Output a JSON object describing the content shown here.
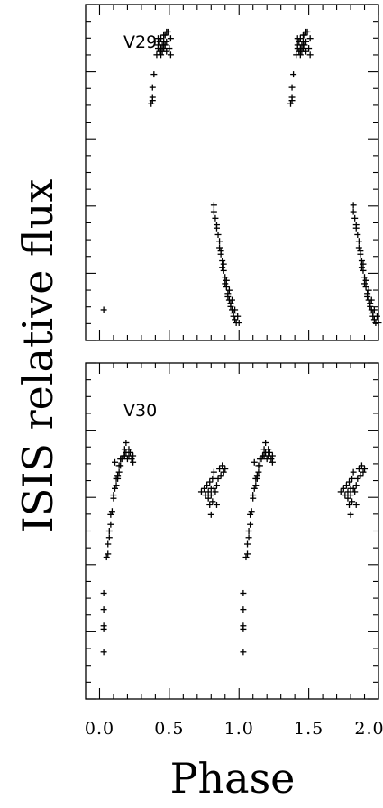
{
  "chart_data": [
    {
      "type": "scatter",
      "panel_label": "V29",
      "xlabel": "Phase",
      "ylabel": "ISIS relative flux",
      "xlim": [
        -0.1,
        2.0
      ],
      "ylim": [
        0,
        1
      ],
      "x_ticks": [
        "0.0",
        "0.5",
        "1.0",
        "1.5",
        "2.0"
      ],
      "y_tick_labels_shown": false,
      "marker": "+",
      "series": [
        {
          "points": [
            [
              0.03,
              0.08
            ],
            [
              0.37,
              0.71
            ],
            [
              0.38,
              0.72
            ],
            [
              0.38,
              0.73
            ],
            [
              0.38,
              0.76
            ],
            [
              0.39,
              0.8
            ],
            [
              0.41,
              0.86
            ],
            [
              0.42,
              0.88
            ],
            [
              0.42,
              0.89
            ],
            [
              0.43,
              0.87
            ],
            [
              0.43,
              0.9
            ],
            [
              0.44,
              0.88
            ],
            [
              0.44,
              0.91
            ],
            [
              0.45,
              0.87
            ],
            [
              0.45,
              0.89
            ],
            [
              0.46,
              0.9
            ],
            [
              0.46,
              0.88
            ],
            [
              0.47,
              0.92
            ],
            [
              0.47,
              0.89
            ],
            [
              0.48,
              0.87
            ],
            [
              0.48,
              0.9
            ],
            [
              0.49,
              0.93
            ],
            [
              0.5,
              0.88
            ],
            [
              0.51,
              0.91
            ],
            [
              0.51,
              0.86
            ],
            [
              0.42,
              0.91
            ],
            [
              0.44,
              0.86
            ],
            [
              0.46,
              0.92
            ],
            [
              0.48,
              0.93
            ],
            [
              0.82,
              0.4
            ],
            [
              0.82,
              0.38
            ],
            [
              0.83,
              0.36
            ],
            [
              0.84,
              0.34
            ],
            [
              0.85,
              0.31
            ],
            [
              0.86,
              0.29
            ],
            [
              0.86,
              0.27
            ],
            [
              0.87,
              0.25
            ],
            [
              0.88,
              0.23
            ],
            [
              0.88,
              0.21
            ],
            [
              0.89,
              0.2
            ],
            [
              0.9,
              0.18
            ],
            [
              0.9,
              0.16
            ],
            [
              0.91,
              0.15
            ],
            [
              0.92,
              0.13
            ],
            [
              0.92,
              0.12
            ],
            [
              0.93,
              0.11
            ],
            [
              0.94,
              0.1
            ],
            [
              0.94,
              0.09
            ],
            [
              0.95,
              0.08
            ],
            [
              0.96,
              0.07
            ],
            [
              0.96,
              0.06
            ],
            [
              0.97,
              0.05
            ],
            [
              0.98,
              0.04
            ],
            [
              0.84,
              0.33
            ],
            [
              0.87,
              0.26
            ],
            [
              0.89,
              0.22
            ],
            [
              0.91,
              0.17
            ],
            [
              0.93,
              0.14
            ],
            [
              0.95,
              0.11
            ],
            [
              0.97,
              0.08
            ],
            [
              0.99,
              0.06
            ],
            [
              1.0,
              0.04
            ],
            [
              1.37,
              0.71
            ],
            [
              1.38,
              0.72
            ],
            [
              1.38,
              0.73
            ],
            [
              1.38,
              0.76
            ],
            [
              1.39,
              0.8
            ],
            [
              1.41,
              0.86
            ],
            [
              1.42,
              0.88
            ],
            [
              1.42,
              0.89
            ],
            [
              1.43,
              0.87
            ],
            [
              1.43,
              0.9
            ],
            [
              1.44,
              0.88
            ],
            [
              1.44,
              0.91
            ],
            [
              1.45,
              0.87
            ],
            [
              1.45,
              0.89
            ],
            [
              1.46,
              0.9
            ],
            [
              1.46,
              0.88
            ],
            [
              1.47,
              0.92
            ],
            [
              1.47,
              0.89
            ],
            [
              1.48,
              0.87
            ],
            [
              1.48,
              0.9
            ],
            [
              1.49,
              0.93
            ],
            [
              1.5,
              0.88
            ],
            [
              1.51,
              0.91
            ],
            [
              1.51,
              0.86
            ],
            [
              1.42,
              0.91
            ],
            [
              1.44,
              0.86
            ],
            [
              1.46,
              0.92
            ],
            [
              1.48,
              0.93
            ],
            [
              1.82,
              0.4
            ],
            [
              1.82,
              0.38
            ],
            [
              1.83,
              0.36
            ],
            [
              1.84,
              0.34
            ],
            [
              1.85,
              0.31
            ],
            [
              1.86,
              0.29
            ],
            [
              1.86,
              0.27
            ],
            [
              1.87,
              0.25
            ],
            [
              1.88,
              0.23
            ],
            [
              1.88,
              0.21
            ],
            [
              1.89,
              0.2
            ],
            [
              1.9,
              0.18
            ],
            [
              1.9,
              0.16
            ],
            [
              1.91,
              0.15
            ],
            [
              1.92,
              0.13
            ],
            [
              1.92,
              0.12
            ],
            [
              1.93,
              0.11
            ],
            [
              1.94,
              0.1
            ],
            [
              1.94,
              0.09
            ],
            [
              1.95,
              0.08
            ],
            [
              1.96,
              0.07
            ],
            [
              1.96,
              0.06
            ],
            [
              1.97,
              0.05
            ],
            [
              1.98,
              0.04
            ],
            [
              1.84,
              0.33
            ],
            [
              1.87,
              0.26
            ],
            [
              1.89,
              0.22
            ],
            [
              1.91,
              0.17
            ],
            [
              1.93,
              0.14
            ],
            [
              1.95,
              0.11
            ],
            [
              1.97,
              0.08
            ],
            [
              1.99,
              0.06
            ],
            [
              2.0,
              0.04
            ]
          ]
        }
      ]
    },
    {
      "type": "scatter",
      "panel_label": "V30",
      "xlabel": "Phase",
      "ylabel": "ISIS relative flux",
      "xlim": [
        -0.1,
        2.0
      ],
      "ylim": [
        0,
        1
      ],
      "x_ticks": [
        "0.0",
        "0.5",
        "1.0",
        "1.5",
        "2.0"
      ],
      "y_tick_labels_shown": false,
      "marker": "+",
      "series": [
        {
          "points": [
            [
              0.03,
              0.13
            ],
            [
              0.03,
              0.2
            ],
            [
              0.03,
              0.21
            ],
            [
              0.03,
              0.26
            ],
            [
              0.03,
              0.31
            ],
            [
              0.05,
              0.42
            ],
            [
              0.06,
              0.43
            ],
            [
              0.06,
              0.46
            ],
            [
              0.07,
              0.48
            ],
            [
              0.07,
              0.5
            ],
            [
              0.08,
              0.52
            ],
            [
              0.08,
              0.55
            ],
            [
              0.09,
              0.56
            ],
            [
              0.1,
              0.6
            ],
            [
              0.1,
              0.61
            ],
            [
              0.11,
              0.63
            ],
            [
              0.12,
              0.64
            ],
            [
              0.12,
              0.66
            ],
            [
              0.13,
              0.66
            ],
            [
              0.14,
              0.68
            ],
            [
              0.14,
              0.7
            ],
            [
              0.15,
              0.72
            ],
            [
              0.16,
              0.72
            ],
            [
              0.17,
              0.73
            ],
            [
              0.18,
              0.73
            ],
            [
              0.18,
              0.75
            ],
            [
              0.19,
              0.74
            ],
            [
              0.2,
              0.72
            ],
            [
              0.21,
              0.73
            ],
            [
              0.22,
              0.74
            ],
            [
              0.23,
              0.72
            ],
            [
              0.24,
              0.71
            ],
            [
              0.24,
              0.73
            ],
            [
              0.19,
              0.77
            ],
            [
              0.21,
              0.75
            ],
            [
              0.11,
              0.71
            ],
            [
              0.13,
              0.67
            ],
            [
              0.15,
              0.7
            ],
            [
              0.73,
              0.62
            ],
            [
              0.75,
              0.63
            ],
            [
              0.76,
              0.61
            ],
            [
              0.77,
              0.64
            ],
            [
              0.78,
              0.6
            ],
            [
              0.78,
              0.62
            ],
            [
              0.79,
              0.65
            ],
            [
              0.8,
              0.63
            ],
            [
              0.8,
              0.61
            ],
            [
              0.81,
              0.66
            ],
            [
              0.81,
              0.59
            ],
            [
              0.82,
              0.63
            ],
            [
              0.82,
              0.68
            ],
            [
              0.83,
              0.62
            ],
            [
              0.84,
              0.64
            ],
            [
              0.85,
              0.66
            ],
            [
              0.86,
              0.69
            ],
            [
              0.87,
              0.67
            ],
            [
              0.88,
              0.7
            ],
            [
              0.89,
              0.68
            ],
            [
              0.9,
              0.69
            ],
            [
              0.8,
              0.55
            ],
            [
              0.84,
              0.58
            ],
            [
              0.79,
              0.58
            ],
            [
              1.03,
              0.13
            ],
            [
              1.03,
              0.2
            ],
            [
              1.03,
              0.21
            ],
            [
              1.03,
              0.26
            ],
            [
              1.03,
              0.31
            ],
            [
              1.05,
              0.42
            ],
            [
              1.06,
              0.43
            ],
            [
              1.06,
              0.46
            ],
            [
              1.07,
              0.48
            ],
            [
              1.07,
              0.5
            ],
            [
              1.08,
              0.52
            ],
            [
              1.08,
              0.55
            ],
            [
              1.09,
              0.56
            ],
            [
              1.1,
              0.6
            ],
            [
              1.1,
              0.61
            ],
            [
              1.11,
              0.63
            ],
            [
              1.12,
              0.64
            ],
            [
              1.12,
              0.66
            ],
            [
              1.13,
              0.66
            ],
            [
              1.14,
              0.68
            ],
            [
              1.14,
              0.7
            ],
            [
              1.15,
              0.72
            ],
            [
              1.16,
              0.72
            ],
            [
              1.17,
              0.73
            ],
            [
              1.18,
              0.73
            ],
            [
              1.18,
              0.75
            ],
            [
              1.19,
              0.74
            ],
            [
              1.2,
              0.72
            ],
            [
              1.21,
              0.73
            ],
            [
              1.22,
              0.74
            ],
            [
              1.23,
              0.72
            ],
            [
              1.24,
              0.71
            ],
            [
              1.24,
              0.73
            ],
            [
              1.19,
              0.77
            ],
            [
              1.21,
              0.75
            ],
            [
              1.11,
              0.71
            ],
            [
              1.13,
              0.67
            ],
            [
              1.15,
              0.7
            ],
            [
              1.73,
              0.62
            ],
            [
              1.75,
              0.63
            ],
            [
              1.76,
              0.61
            ],
            [
              1.77,
              0.64
            ],
            [
              1.78,
              0.6
            ],
            [
              1.78,
              0.62
            ],
            [
              1.79,
              0.65
            ],
            [
              1.8,
              0.63
            ],
            [
              1.8,
              0.61
            ],
            [
              1.81,
              0.66
            ],
            [
              1.81,
              0.59
            ],
            [
              1.82,
              0.63
            ],
            [
              1.82,
              0.68
            ],
            [
              1.83,
              0.62
            ],
            [
              1.84,
              0.64
            ],
            [
              1.85,
              0.66
            ],
            [
              1.86,
              0.69
            ],
            [
              1.87,
              0.67
            ],
            [
              1.88,
              0.7
            ],
            [
              1.89,
              0.68
            ],
            [
              1.9,
              0.69
            ],
            [
              1.8,
              0.55
            ],
            [
              1.84,
              0.58
            ],
            [
              1.79,
              0.58
            ]
          ]
        }
      ]
    }
  ]
}
